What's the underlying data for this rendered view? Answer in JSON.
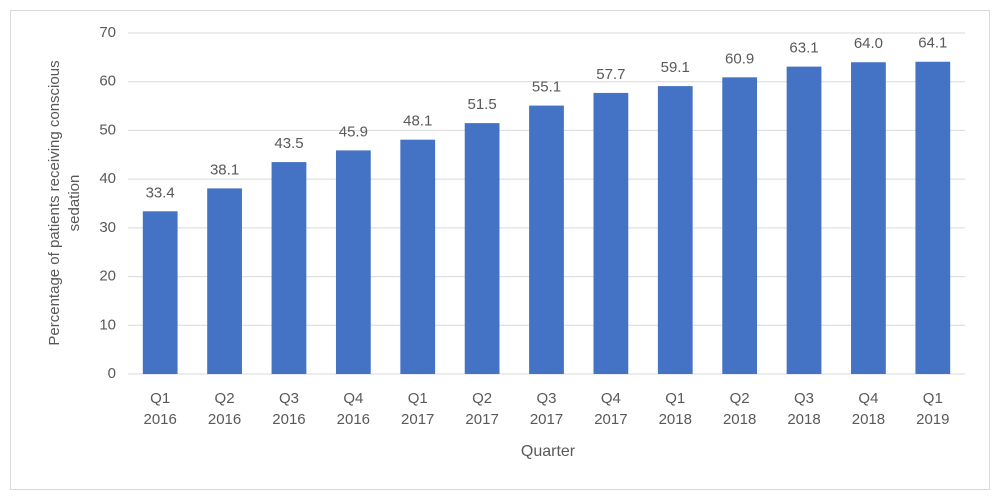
{
  "chart_data": {
    "type": "bar",
    "x_label": "Quarter",
    "y_label": "Percentage of patients receiving conscious sedation",
    "categories": [
      "Q1 2016",
      "Q2 2016",
      "Q3 2016",
      "Q4 2016",
      "Q1 2017",
      "Q2 2017",
      "Q3 2017",
      "Q4 2017",
      "Q1 2018",
      "Q2 2018",
      "Q3 2018",
      "Q4 2018",
      "Q1 2019"
    ],
    "values": [
      33.4,
      38.1,
      43.5,
      45.9,
      48.1,
      51.5,
      55.1,
      57.7,
      59.1,
      60.9,
      63.1,
      64.0,
      64.1
    ],
    "value_labels": [
      "33.4",
      "38.1",
      "43.5",
      "45.9",
      "48.1",
      "51.5",
      "55.1",
      "57.7",
      "59.1",
      "60.9",
      "63.1",
      "64.0",
      "64.1"
    ],
    "color": "#4472c4",
    "ylim": [
      0,
      70
    ],
    "yticks": [
      0,
      10,
      20,
      30,
      40,
      50,
      60,
      70
    ],
    "grid": true
  }
}
